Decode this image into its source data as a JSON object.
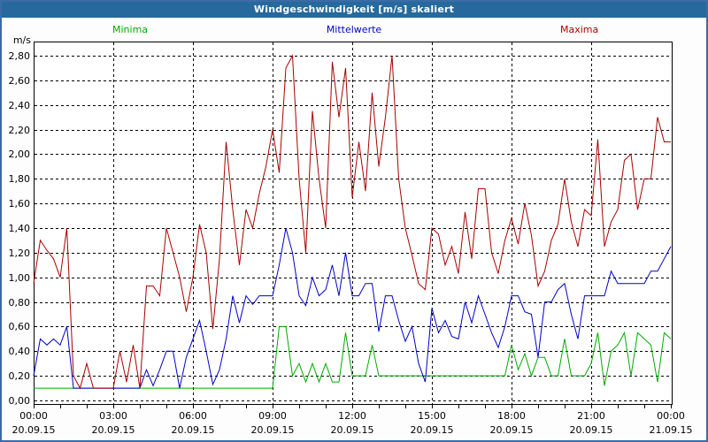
{
  "window": {
    "title": "Windgeschwindigkeit [m/s] skaliert"
  },
  "legend": {
    "minima": {
      "label": "Minima",
      "color": "#00aa00"
    },
    "mittelwerte": {
      "label": "Mittelwerte",
      "color": "#0000cc"
    },
    "maxima": {
      "label": "Maxima",
      "color": "#aa0000"
    }
  },
  "colors": {
    "titlebar_bg": "#26699c",
    "page_border": "#3b6ba5",
    "grid": "#000000",
    "minima_line": "#00aa00",
    "mittelwerte_line": "#0000cc",
    "maxima_line": "#aa0000"
  },
  "chart_data": {
    "type": "line",
    "title": "Windgeschwindigkeit [m/s] skaliert",
    "ylabel": "m/s",
    "ylim": [
      0.0,
      2.9
    ],
    "ytick_step": 0.2,
    "y_ticks": [
      "0,00",
      "0,20",
      "0,40",
      "0,60",
      "0,80",
      "1,00",
      "1,20",
      "1,40",
      "1,60",
      "1,80",
      "2,00",
      "2,20",
      "2,40",
      "2,60",
      "2,80"
    ],
    "x_ticks": [
      {
        "time": "00:00",
        "date": "20.09.15"
      },
      {
        "time": "03:00",
        "date": "20.09.15"
      },
      {
        "time": "06:00",
        "date": "20.09.15"
      },
      {
        "time": "09:00",
        "date": "20.09.15"
      },
      {
        "time": "12:00",
        "date": "20.09.15"
      },
      {
        "time": "15:00",
        "date": "20.09.15"
      },
      {
        "time": "18:00",
        "date": "20.09.15"
      },
      {
        "time": "21:00",
        "date": "20.09.15"
      },
      {
        "time": "00:00",
        "date": "21.09.15"
      }
    ],
    "x_start": "20.09.15 00:00",
    "x_end": "21.09.15 00:00",
    "minutes_per_point": 15,
    "grid": true,
    "legend_position": "top",
    "series": [
      {
        "name": "Minima",
        "color": "#00aa00",
        "values": [
          0.1,
          0.1,
          0.1,
          0.1,
          0.1,
          0.1,
          0.1,
          0.1,
          0.1,
          0.1,
          0.1,
          0.1,
          0.1,
          0.1,
          0.1,
          0.1,
          0.1,
          0.1,
          0.1,
          0.1,
          0.1,
          0.1,
          0.1,
          0.1,
          0.1,
          0.1,
          0.1,
          0.1,
          0.1,
          0.1,
          0.1,
          0.1,
          0.1,
          0.1,
          0.1,
          0.1,
          0.1,
          0.6,
          0.6,
          0.2,
          0.3,
          0.15,
          0.3,
          0.15,
          0.3,
          0.15,
          0.15,
          0.55,
          0.2,
          0.2,
          0.2,
          0.45,
          0.2,
          0.2,
          0.2,
          0.2,
          0.2,
          0.2,
          0.2,
          0.2,
          0.2,
          0.2,
          0.2,
          0.2,
          0.2,
          0.2,
          0.2,
          0.2,
          0.2,
          0.2,
          0.2,
          0.2,
          0.45,
          0.25,
          0.38,
          0.2,
          0.35,
          0.35,
          0.2,
          0.2,
          0.5,
          0.2,
          0.2,
          0.2,
          0.3,
          0.55,
          0.12,
          0.4,
          0.45,
          0.55,
          0.2,
          0.55,
          0.5,
          0.45,
          0.15,
          0.55,
          0.5
        ]
      },
      {
        "name": "Mittelwerte",
        "color": "#0000cc",
        "values": [
          0.2,
          0.5,
          0.45,
          0.5,
          0.45,
          0.6,
          0.1,
          0.1,
          0.1,
          0.1,
          0.1,
          0.1,
          0.1,
          0.1,
          0.1,
          0.1,
          0.1,
          0.25,
          0.12,
          0.25,
          0.4,
          0.4,
          0.1,
          0.35,
          0.5,
          0.65,
          0.4,
          0.13,
          0.25,
          0.5,
          0.85,
          0.63,
          0.85,
          0.78,
          0.85,
          0.85,
          0.85,
          1.1,
          1.4,
          1.2,
          0.85,
          0.77,
          1.0,
          0.85,
          0.9,
          1.1,
          0.85,
          1.2,
          0.85,
          0.85,
          0.95,
          0.95,
          0.56,
          0.85,
          0.85,
          0.65,
          0.48,
          0.6,
          0.3,
          0.15,
          0.75,
          0.55,
          0.65,
          0.52,
          0.5,
          0.8,
          0.63,
          0.85,
          0.7,
          0.55,
          0.43,
          0.6,
          0.85,
          0.85,
          0.72,
          0.7,
          0.35,
          0.8,
          0.8,
          0.9,
          0.95,
          0.7,
          0.5,
          0.85,
          0.85,
          0.85,
          0.85,
          1.05,
          0.95,
          0.95,
          0.95,
          0.95,
          0.95,
          1.05,
          1.05,
          1.15,
          1.25
        ]
      },
      {
        "name": "Maxima",
        "color": "#aa0000",
        "values": [
          0.95,
          1.3,
          1.22,
          1.15,
          1.0,
          1.4,
          0.2,
          0.1,
          0.3,
          0.1,
          0.1,
          0.1,
          0.1,
          0.4,
          0.15,
          0.45,
          0.1,
          0.93,
          0.93,
          0.85,
          1.4,
          1.2,
          1.0,
          0.72,
          1.0,
          1.43,
          1.2,
          0.58,
          1.15,
          2.1,
          1.55,
          1.1,
          1.55,
          1.4,
          1.68,
          1.9,
          2.2,
          1.85,
          2.7,
          2.8,
          1.8,
          1.2,
          2.35,
          1.8,
          1.4,
          2.75,
          2.3,
          2.7,
          1.65,
          2.1,
          1.7,
          2.5,
          1.9,
          2.3,
          2.8,
          1.8,
          1.4,
          1.18,
          0.95,
          0.9,
          1.4,
          1.35,
          1.1,
          1.25,
          1.03,
          1.53,
          1.15,
          1.72,
          1.72,
          1.2,
          1.03,
          1.3,
          1.48,
          1.27,
          1.6,
          1.34,
          0.93,
          1.05,
          1.3,
          1.43,
          1.8,
          1.45,
          1.25,
          1.55,
          1.5,
          2.12,
          1.25,
          1.45,
          1.55,
          1.95,
          2.0,
          1.55,
          1.8,
          1.8,
          2.3,
          2.1,
          2.1
        ]
      }
    ]
  }
}
